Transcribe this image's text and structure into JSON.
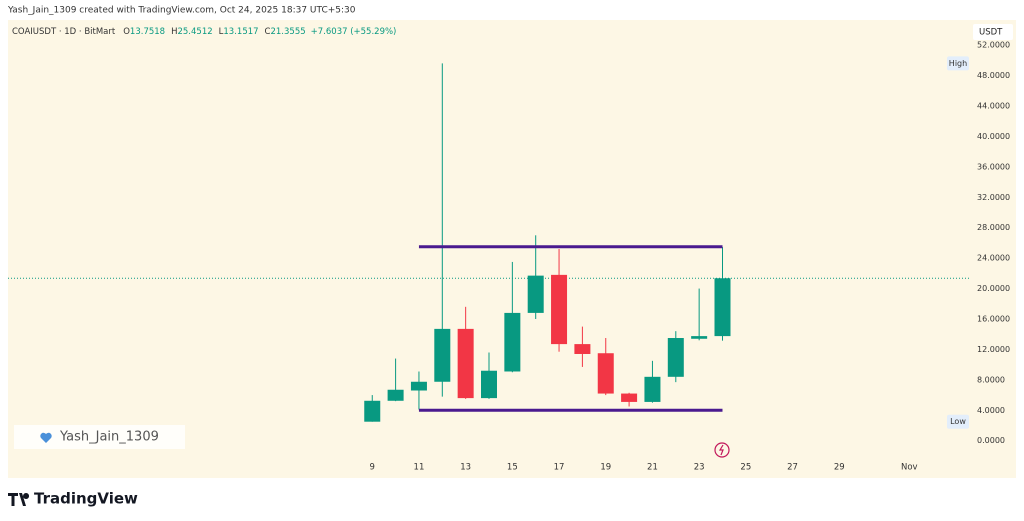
{
  "credit": "Yash_Jain_1309 created with TradingView.com, Oct 24, 2025 18:37 UTC+5:30",
  "symbol": "COAIUSDT · 1D · BitMart",
  "ohlc": [
    {
      "label": "O",
      "value": "13.7518"
    },
    {
      "label": "H",
      "value": "25.4512"
    },
    {
      "label": "L",
      "value": "13.1517"
    },
    {
      "label": "C",
      "value": "21.3555"
    }
  ],
  "change": "+7.6037 (+55.29%)",
  "currency": "USDT",
  "watermark": "Yash_Jain_1309",
  "brand": "TradingView",
  "chart_data": {
    "type": "candlestick",
    "x": [
      9,
      10,
      11,
      12,
      13,
      14,
      15,
      16,
      17,
      18,
      19,
      20,
      21,
      22,
      23,
      24
    ],
    "open": [
      2.5,
      5.25,
      6.6,
      7.75,
      14.7,
      5.6,
      9.1,
      16.8,
      21.8,
      12.7,
      11.5,
      6.2,
      5.1,
      8.4,
      13.4,
      13.7518
    ],
    "high": [
      6.0,
      10.8,
      9.1,
      49.6,
      17.6,
      11.6,
      23.5,
      27.0,
      25.2,
      15.0,
      13.5,
      6.3,
      10.5,
      14.4,
      20.0,
      25.4512
    ],
    "low": [
      2.5,
      5.2,
      4.1,
      5.8,
      5.5,
      5.5,
      9.0,
      16.0,
      11.7,
      9.7,
      6.0,
      4.5,
      5.0,
      7.7,
      13.2,
      13.1517
    ],
    "close": [
      5.25,
      6.7,
      7.75,
      14.7,
      5.6,
      9.2,
      16.8,
      21.7,
      12.7,
      11.4,
      6.2,
      5.1,
      8.4,
      13.5,
      13.75,
      21.3555
    ],
    "up_color": "#089981",
    "down_color": "#f23645",
    "xlim": [
      -6.6,
      34.6
    ],
    "xticks": [
      9,
      11,
      13,
      15,
      17,
      19,
      21,
      23,
      25,
      27,
      29,
      {
        "value": 32,
        "label": "Nov"
      }
    ],
    "ylim": [
      -4.9,
      55.3
    ],
    "yticks": [
      {
        "value": 0,
        "label": "0.0000"
      },
      {
        "value": 4,
        "label": "4.0000"
      },
      {
        "value": 8,
        "label": "8.0000"
      },
      {
        "value": 12,
        "label": "12.0000"
      },
      {
        "value": 16,
        "label": "16.0000"
      },
      {
        "value": 20,
        "label": "20.0000"
      },
      {
        "value": 24,
        "label": "24.0000"
      },
      {
        "value": 28,
        "label": "28.0000"
      },
      {
        "value": 32,
        "label": "32.0000"
      },
      {
        "value": 36,
        "label": "36.0000"
      },
      {
        "value": 40,
        "label": "40.0000"
      },
      {
        "value": 44,
        "label": "44.0000"
      },
      {
        "value": 48,
        "label": "48.0000"
      },
      {
        "value": 52,
        "label": "52.0000"
      }
    ],
    "axis_markers": [
      {
        "label": "High",
        "value": 49.6
      },
      {
        "label": "Low",
        "value": 2.5
      }
    ],
    "lines": [
      {
        "y": 25.5,
        "x": [
          11,
          24
        ]
      },
      {
        "y": 4.0,
        "x": [
          11,
          24
        ]
      }
    ],
    "line_color": "#4a1a8f"
  }
}
